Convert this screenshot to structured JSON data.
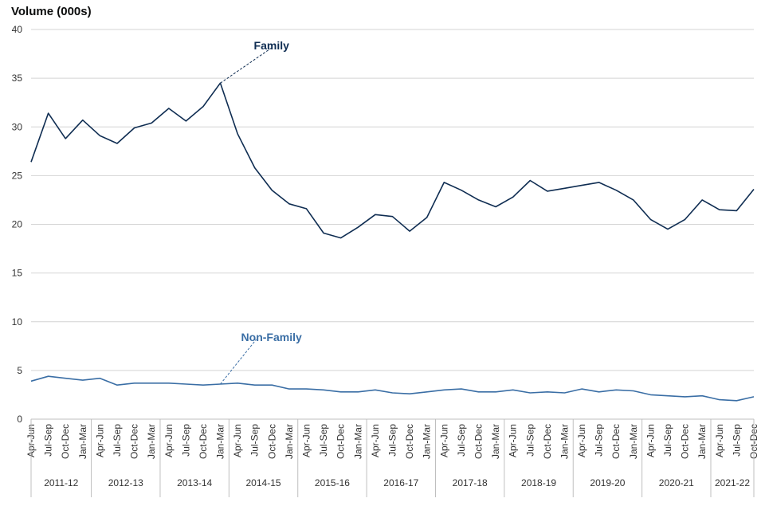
{
  "chart_data": {
    "type": "line",
    "ylabel": "Volume (000s)",
    "xlabel": "",
    "ylim": [
      0,
      40
    ],
    "yticks": [
      0,
      5,
      10,
      15,
      20,
      25,
      30,
      35,
      40
    ],
    "grid": true,
    "quarters": [
      "Apr-Jun",
      "Jul-Sep",
      "Oct-Dec",
      "Jan-Mar"
    ],
    "years": [
      "2011-12",
      "2012-13",
      "2013-14",
      "2014-15",
      "2015-16",
      "2016-17",
      "2017-18",
      "2018-19",
      "2019-20",
      "2020-21",
      "2021-22"
    ],
    "categories": [
      "Apr-Jun",
      "Jul-Sep",
      "Oct-Dec",
      "Jan-Mar",
      "Apr-Jun",
      "Jul-Sep",
      "Oct-Dec",
      "Jan-Mar",
      "Apr-Jun",
      "Jul-Sep",
      "Oct-Dec",
      "Jan-Mar",
      "Apr-Jun",
      "Jul-Sep",
      "Oct-Dec",
      "Jan-Mar",
      "Apr-Jun",
      "Jul-Sep",
      "Oct-Dec",
      "Jan-Mar",
      "Apr-Jun",
      "Jul-Sep",
      "Oct-Dec",
      "Jan-Mar",
      "Apr-Jun",
      "Jul-Sep",
      "Oct-Dec",
      "Jan-Mar",
      "Apr-Jun",
      "Jul-Sep",
      "Oct-Dec",
      "Jan-Mar",
      "Apr-Jun",
      "Jul-Sep",
      "Oct-Dec",
      "Jan-Mar",
      "Apr-Jun",
      "Jul-Sep",
      "Oct-Dec",
      "Jan-Mar",
      "Apr-Jun",
      "Jul-Sep",
      "Oct-Dec"
    ],
    "series": [
      {
        "name": "Family",
        "color": "#0f2d52",
        "label_at_index": 11,
        "values": [
          26.4,
          31.4,
          28.8,
          30.7,
          29.1,
          28.3,
          29.9,
          30.4,
          31.9,
          30.6,
          32.1,
          34.5,
          29.3,
          25.8,
          23.5,
          22.1,
          21.6,
          19.1,
          18.6,
          19.7,
          21.0,
          20.8,
          19.3,
          20.7,
          24.3,
          23.5,
          22.5,
          21.8,
          22.8,
          24.5,
          23.4,
          23.7,
          24.0,
          24.3,
          23.5,
          22.5,
          20.5,
          19.5,
          20.5,
          22.5,
          21.5,
          21.4,
          23.6
        ]
      },
      {
        "name": "Non-Family",
        "color": "#3a6ea5",
        "label_at_index": 11,
        "values": [
          3.9,
          4.4,
          4.2,
          4.0,
          4.2,
          3.5,
          3.7,
          3.7,
          3.7,
          3.6,
          3.5,
          3.6,
          3.7,
          3.5,
          3.5,
          3.1,
          3.1,
          3.0,
          2.8,
          2.8,
          3.0,
          2.7,
          2.6,
          2.8,
          3.0,
          3.1,
          2.8,
          2.8,
          3.0,
          2.7,
          2.8,
          2.7,
          3.1,
          2.8,
          3.0,
          2.9,
          2.5,
          2.4,
          2.3,
          2.4,
          2.0,
          1.9,
          2.3
        ]
      }
    ]
  }
}
